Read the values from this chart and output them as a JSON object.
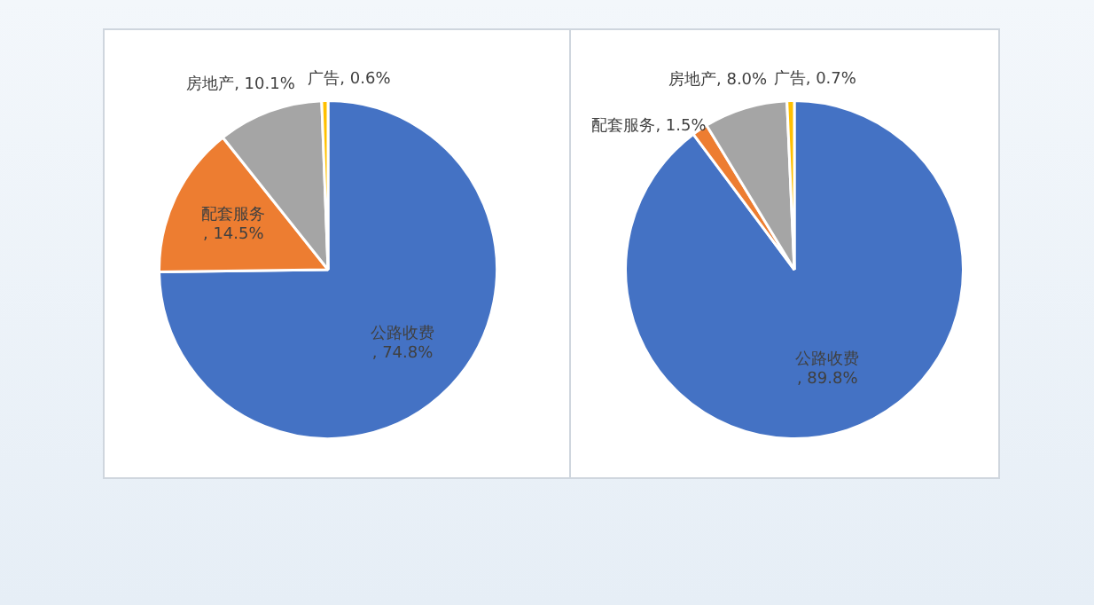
{
  "chart_data": [
    {
      "type": "pie",
      "categories": [
        "公路收费",
        "配套服务",
        "房地产",
        "广告"
      ],
      "values": [
        74.8,
        14.5,
        10.1,
        0.6
      ],
      "value_labels": [
        ", 74.8%",
        ", 14.5%",
        ", 10.1%",
        ", 0.6%"
      ],
      "colors": [
        "#4472c4",
        "#ed7d31",
        "#a5a5a5",
        "#ffc000"
      ],
      "legend": false
    },
    {
      "type": "pie",
      "categories": [
        "公路收费",
        "配套服务",
        "房地产",
        "广告"
      ],
      "values": [
        89.8,
        1.5,
        8.0,
        0.7
      ],
      "value_labels": [
        ", 89.8%",
        ", 1.5%",
        ", 8.0%",
        ", 0.7%"
      ],
      "colors": [
        "#4472c4",
        "#ed7d31",
        "#a5a5a5",
        "#ffc000"
      ],
      "legend": false
    }
  ]
}
